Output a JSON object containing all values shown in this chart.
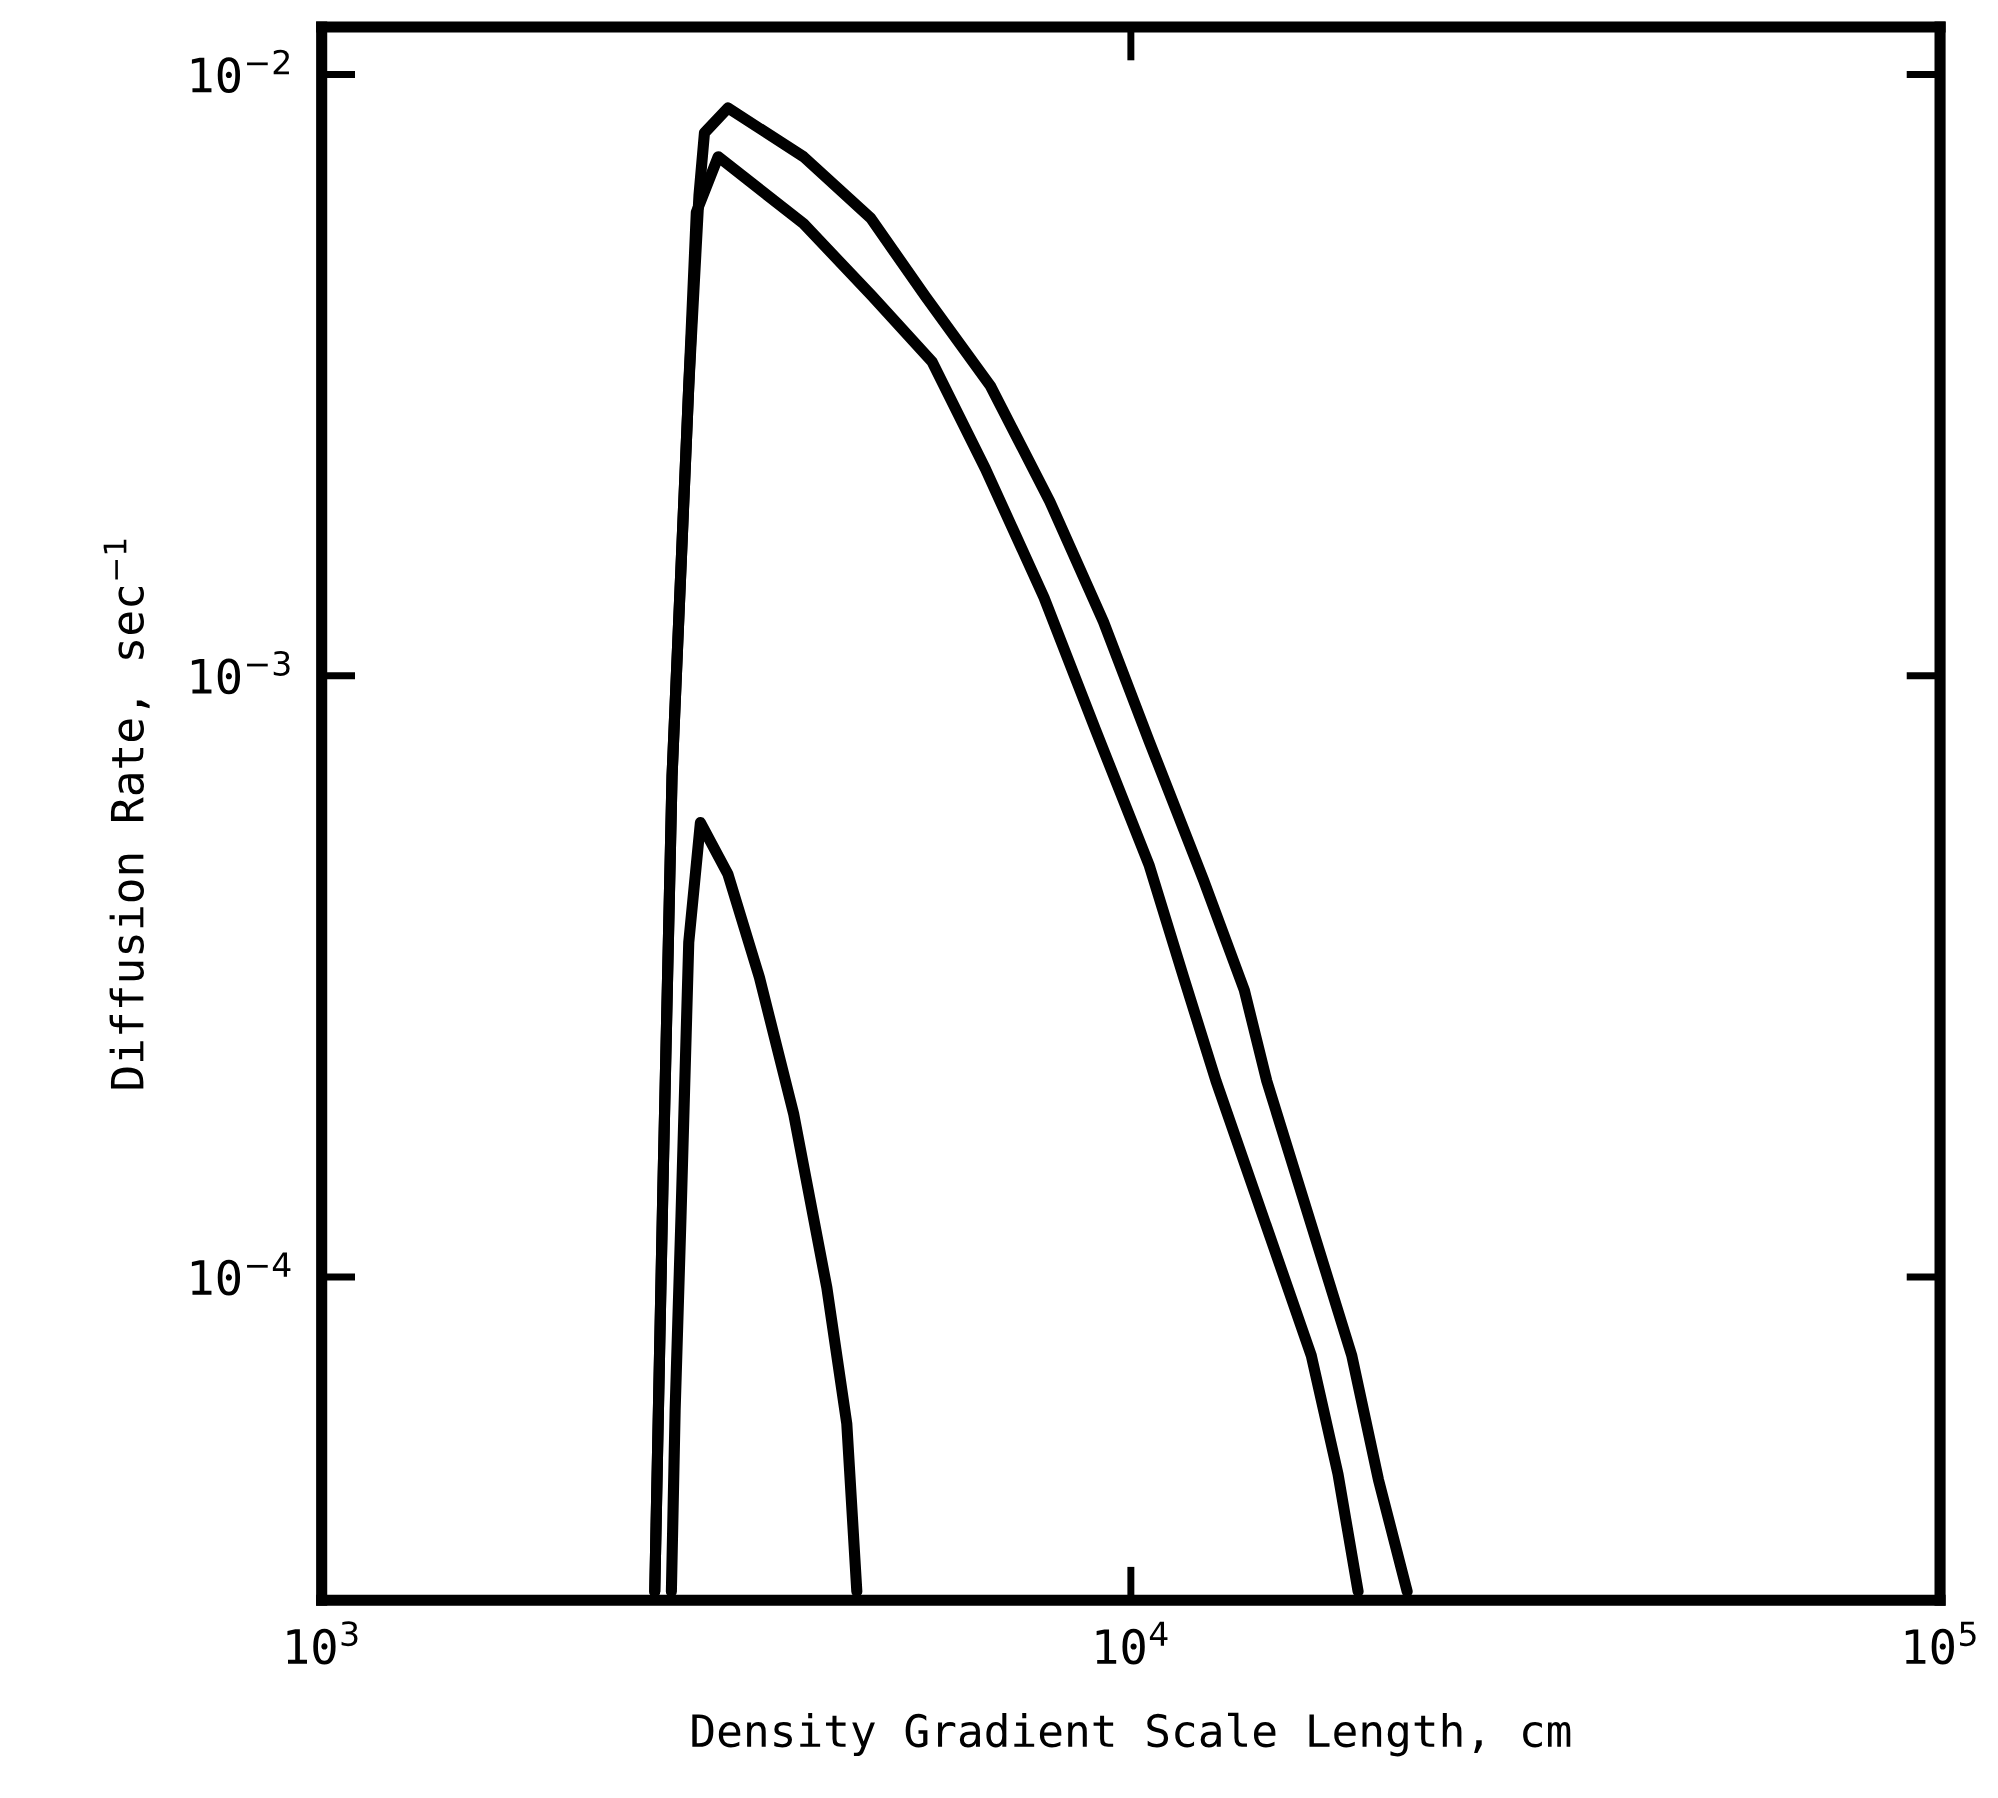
{
  "chart_data": {
    "type": "line",
    "xlabel": "Density Gradient Scale Length, cm",
    "ylabel": "Diffusion Rate, sec$^{−1}$",
    "log": "xy",
    "grid": false,
    "legend": false,
    "marker": "none",
    "line_style": "solid",
    "xlim": [
      1000,
      100000
    ],
    "ylim": [
      2.9e-05,
      0.012
    ],
    "xticks": [
      {
        "value": 1000,
        "label": "10$^{3}$"
      },
      {
        "value": 10000,
        "label": "10$^{4}$"
      },
      {
        "value": 100000,
        "label": "10$^{5}$"
      }
    ],
    "yticks": [
      {
        "value": 0.0001,
        "label": "10$^{−4}$"
      },
      {
        "value": 0.001,
        "label": "10$^{−3}$"
      },
      {
        "value": 0.01,
        "label": "10$^{−2}$"
      }
    ],
    "series": [
      {
        "color": "#000000",
        "x": [
          2580,
          2640,
          2710,
          2842,
          2926,
          2972,
          3177,
          3940,
          4770,
          5570,
          6710,
          7940,
          9250,
          10540,
          12300,
          13810,
          14720,
          18750,
          20230,
          21950
        ],
        "values": [
          3e-05,
          0.000139,
          0.00068,
          0.00303,
          0.0063,
          0.008,
          0.0088,
          0.0073,
          0.00577,
          0.00428,
          0.00303,
          0.00195,
          0.00123,
          0.000777,
          0.000457,
          0.0003,
          0.000212,
          7.4e-05,
          4.6e-05,
          3e-05
        ]
      },
      {
        "color": "#000000",
        "x": [
          2580,
          2640,
          2710,
          2842,
          2904,
          3090,
          3940,
          4790,
          5680,
          6610,
          7810,
          9040,
          10540,
          11620,
          12740,
          16710,
          18030,
          19090
        ],
        "values": [
          3e-05,
          0.000139,
          0.00068,
          0.00303,
          0.0059,
          0.0073,
          0.00565,
          0.00428,
          0.00333,
          0.00221,
          0.00135,
          0.000814,
          0.000483,
          0.000315,
          0.000212,
          7.4e-05,
          4.7e-05,
          3e-05
        ]
      },
      {
        "color": "#000000",
        "x": [
          2705,
          2734,
          2780,
          2842,
          2938,
          3177,
          3475,
          3830,
          4210,
          4456,
          4585
        ],
        "values": [
          3e-05,
          6e-05,
          0.000126,
          0.00036,
          0.00057,
          0.000468,
          0.000315,
          0.000187,
          9.6e-05,
          5.7e-05,
          3e-05
        ]
      }
    ]
  }
}
